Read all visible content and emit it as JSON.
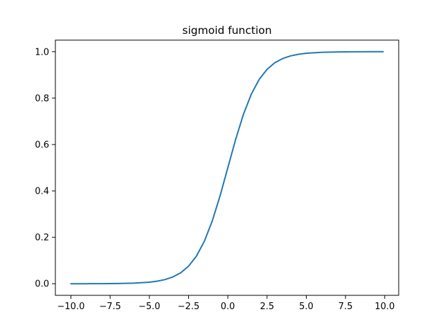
{
  "chart_data": {
    "type": "line",
    "title": "sigmoid function",
    "xlabel": "",
    "ylabel": "",
    "xlim": [
      -10.99,
      10.89
    ],
    "ylim": [
      -0.05,
      1.05
    ],
    "x_ticks": [
      -10.0,
      -7.5,
      -5.0,
      -2.5,
      0.0,
      2.5,
      5.0,
      7.5,
      10.0
    ],
    "x_tick_labels": [
      "−10.0",
      "−7.5",
      "−5.0",
      "−2.5",
      "0.0",
      "2.5",
      "5.0",
      "7.5",
      "10.0"
    ],
    "y_ticks": [
      0.0,
      0.2,
      0.4,
      0.6,
      0.8,
      1.0
    ],
    "y_tick_labels": [
      "0.0",
      "0.2",
      "0.4",
      "0.6",
      "0.8",
      "1.0"
    ],
    "grid": false,
    "series": [
      {
        "color": "#1f77b4",
        "x": [
          -10.0,
          -9.0,
          -8.0,
          -7.0,
          -6.0,
          -5.0,
          -4.5,
          -4.0,
          -3.5,
          -3.0,
          -2.5,
          -2.0,
          -1.5,
          -1.0,
          -0.5,
          0.0,
          0.5,
          1.0,
          1.5,
          2.0,
          2.5,
          3.0,
          3.5,
          4.0,
          4.5,
          5.0,
          6.0,
          7.0,
          8.0,
          9.0,
          9.9
        ],
        "y": [
          5e-05,
          0.00012,
          0.00034,
          0.00091,
          0.00247,
          0.00669,
          0.011,
          0.018,
          0.0293,
          0.0474,
          0.0759,
          0.1192,
          0.1824,
          0.2689,
          0.3775,
          0.5,
          0.6225,
          0.7311,
          0.8176,
          0.8808,
          0.9241,
          0.9526,
          0.9707,
          0.982,
          0.989,
          0.9933,
          0.9975,
          0.9991,
          0.9997,
          0.9999,
          0.99995
        ]
      }
    ]
  }
}
